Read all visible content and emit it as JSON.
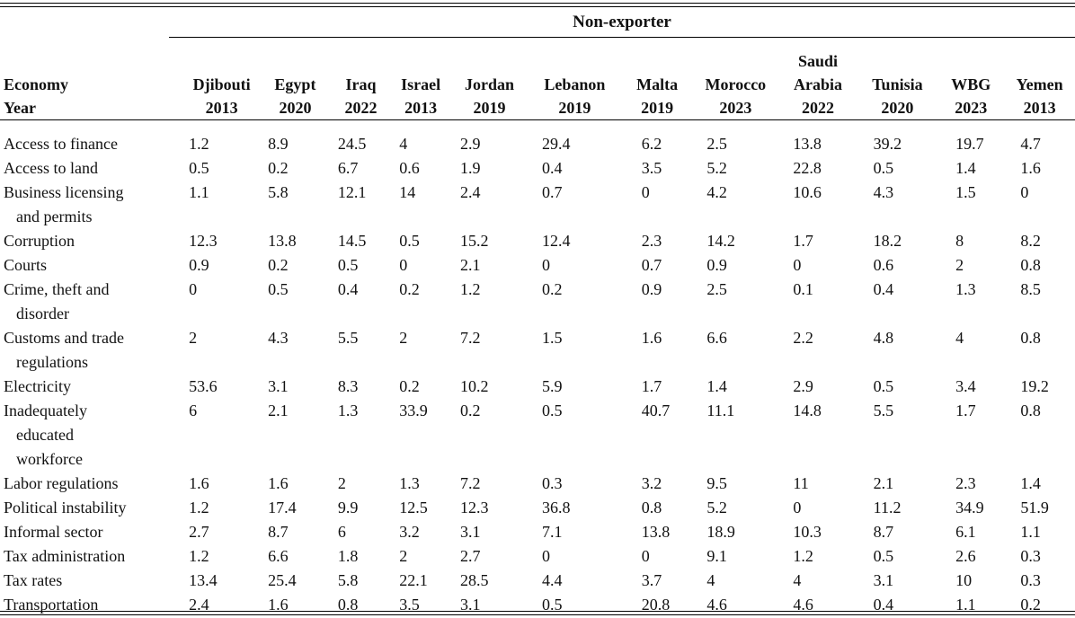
{
  "group_header": "Non-exporter",
  "header": {
    "economy_label": "Economy",
    "year_label": "Year"
  },
  "columns": [
    {
      "name": [
        "Djibouti"
      ],
      "year": "2013"
    },
    {
      "name": [
        "Egypt"
      ],
      "year": "2020"
    },
    {
      "name": [
        "Iraq"
      ],
      "year": "2022"
    },
    {
      "name": [
        "Israel"
      ],
      "year": "2013"
    },
    {
      "name": [
        "Jordan"
      ],
      "year": "2019"
    },
    {
      "name": [
        "Lebanon"
      ],
      "year": "2019"
    },
    {
      "name": [
        "Malta"
      ],
      "year": "2019"
    },
    {
      "name": [
        "Morocco"
      ],
      "year": "2023"
    },
    {
      "name": [
        "Saudi",
        "Arabia"
      ],
      "year": "2022"
    },
    {
      "name": [
        "Tunisia"
      ],
      "year": "2020"
    },
    {
      "name": [
        "WBG"
      ],
      "year": "2023"
    },
    {
      "name": [
        "Yemen"
      ],
      "year": "2013"
    }
  ],
  "rows": [
    {
      "label": [
        "Access to finance"
      ],
      "values": [
        "1.2",
        "8.9",
        "24.5",
        "4",
        "2.9",
        "29.4",
        "6.2",
        "2.5",
        "13.8",
        "39.2",
        "19.7",
        "4.7"
      ]
    },
    {
      "label": [
        "Access to land"
      ],
      "values": [
        "0.5",
        "0.2",
        "6.7",
        "0.6",
        "1.9",
        "0.4",
        "3.5",
        "5.2",
        "22.8",
        "0.5",
        "1.4",
        "1.6"
      ]
    },
    {
      "label": [
        "Business licensing",
        "and permits"
      ],
      "values": [
        "1.1",
        "5.8",
        "12.1",
        "14",
        "2.4",
        "0.7",
        "0",
        "4.2",
        "10.6",
        "4.3",
        "1.5",
        "0"
      ]
    },
    {
      "label": [
        "Corruption"
      ],
      "values": [
        "12.3",
        "13.8",
        "14.5",
        "0.5",
        "15.2",
        "12.4",
        "2.3",
        "14.2",
        "1.7",
        "18.2",
        "8",
        "8.2"
      ]
    },
    {
      "label": [
        "Courts"
      ],
      "values": [
        "0.9",
        "0.2",
        "0.5",
        "0",
        "2.1",
        "0",
        "0.7",
        "0.9",
        "0",
        "0.6",
        "2",
        "0.8"
      ]
    },
    {
      "label": [
        "Crime, theft and",
        "disorder"
      ],
      "values": [
        "0",
        "0.5",
        "0.4",
        "0.2",
        "1.2",
        "0.2",
        "0.9",
        "2.5",
        "0.1",
        "0.4",
        "1.3",
        "8.5"
      ]
    },
    {
      "label": [
        "Customs and trade",
        "regulations"
      ],
      "values": [
        "2",
        "4.3",
        "5.5",
        "2",
        "7.2",
        "1.5",
        "1.6",
        "6.6",
        "2.2",
        "4.8",
        "4",
        "0.8"
      ]
    },
    {
      "label": [
        "Electricity"
      ],
      "values": [
        "53.6",
        "3.1",
        "8.3",
        "0.2",
        "10.2",
        "5.9",
        "1.7",
        "1.4",
        "2.9",
        "0.5",
        "3.4",
        "19.2"
      ]
    },
    {
      "label": [
        "Inadequately",
        "educated",
        "workforce"
      ],
      "values": [
        "6",
        "2.1",
        "1.3",
        "33.9",
        "0.2",
        "0.5",
        "40.7",
        "11.1",
        "14.8",
        "5.5",
        "1.7",
        "0.8"
      ]
    },
    {
      "label": [
        "Labor regulations"
      ],
      "values": [
        "1.6",
        "1.6",
        "2",
        "1.3",
        "7.2",
        "0.3",
        "3.2",
        "9.5",
        "11",
        "2.1",
        "2.3",
        "1.4"
      ]
    },
    {
      "label": [
        "Political instability"
      ],
      "values": [
        "1.2",
        "17.4",
        "9.9",
        "12.5",
        "12.3",
        "36.8",
        "0.8",
        "5.2",
        "0",
        "11.2",
        "34.9",
        "51.9"
      ]
    },
    {
      "label": [
        "Informal sector"
      ],
      "values": [
        "2.7",
        "8.7",
        "6",
        "3.2",
        "3.1",
        "7.1",
        "13.8",
        "18.9",
        "10.3",
        "8.7",
        "6.1",
        "1.1"
      ]
    },
    {
      "label": [
        "Tax administration"
      ],
      "values": [
        "1.2",
        "6.6",
        "1.8",
        "2",
        "2.7",
        "0",
        "0",
        "9.1",
        "1.2",
        "0.5",
        "2.6",
        "0.3"
      ]
    },
    {
      "label": [
        "Tax rates"
      ],
      "values": [
        "13.4",
        "25.4",
        "5.8",
        "22.1",
        "28.5",
        "4.4",
        "3.7",
        "4",
        "4",
        "3.1",
        "10",
        "0.3"
      ]
    },
    {
      "label": [
        "Transportation"
      ],
      "values": [
        "2.4",
        "1.6",
        "0.8",
        "3.5",
        "3.1",
        "0.5",
        "20.8",
        "4.6",
        "4.6",
        "0.4",
        "1.1",
        "0.2"
      ]
    }
  ]
}
